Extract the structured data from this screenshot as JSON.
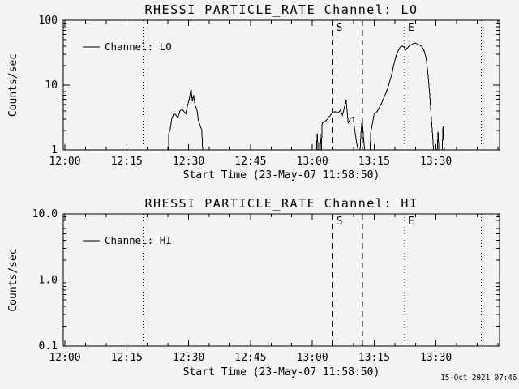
{
  "window": {
    "bg_color": "#f4f4f4",
    "fg_color": "#000000"
  },
  "footer": {
    "timestamp": "15-Oct-2021 07:46"
  },
  "chart_data": [
    {
      "id": "lo",
      "type": "line",
      "title": "RHESSI PARTICLE_RATE Channel: LO",
      "xlabel": "Start Time (23-May-07 11:58:50)",
      "ylabel": "Counts/sec",
      "legend": {
        "label": "Channel: LO",
        "position": "top-left"
      },
      "grid": false,
      "y_scale": "log",
      "ylim": [
        1,
        100
      ],
      "yticks": {
        "values": [
          1,
          10,
          100
        ],
        "labels": [
          "1",
          "10",
          "100"
        ]
      },
      "xlim_minutes_after_1200": [
        -0.4,
        105.4
      ],
      "xticks": {
        "values": [
          0,
          15,
          30,
          45,
          60,
          75,
          90
        ],
        "labels": [
          "12:00",
          "12:15",
          "12:30",
          "12:45",
          "13:00",
          "13:15",
          "13:30"
        ]
      },
      "x_minor_step_minutes": 5,
      "event_lines": [
        {
          "name": "eclipse-line-1",
          "style": "dotted",
          "t": 19.0,
          "label": ""
        },
        {
          "name": "flare-start-line",
          "style": "dashed",
          "t": 65.0,
          "label": "S"
        },
        {
          "name": "flare-mid-line",
          "style": "dashed",
          "t": 72.2,
          "label": ""
        },
        {
          "name": "flare-end-line",
          "style": "dotted",
          "t": 82.4,
          "label": "E"
        },
        {
          "name": "eclipse-line-2",
          "style": "dotted",
          "t": 101.0,
          "label": ""
        }
      ],
      "series": [
        {
          "name": "Channel: LO",
          "points": [
            [
              0,
              1
            ],
            [
              25.1,
              1
            ],
            [
              25.2,
              1.8
            ],
            [
              25.5,
              2.0
            ],
            [
              25.9,
              3.0
            ],
            [
              26.4,
              3.6
            ],
            [
              26.9,
              3.5
            ],
            [
              27.4,
              3.1
            ],
            [
              27.9,
              4.0
            ],
            [
              28.4,
              4.2
            ],
            [
              28.9,
              3.9
            ],
            [
              29.3,
              3.6
            ],
            [
              29.8,
              5.0
            ],
            [
              30.2,
              6.2
            ],
            [
              30.6,
              8.8
            ],
            [
              30.9,
              5.6
            ],
            [
              31.2,
              7.0
            ],
            [
              31.6,
              4.8
            ],
            [
              32.0,
              4.2
            ],
            [
              32.4,
              2.8
            ],
            [
              32.8,
              2.4
            ],
            [
              33.2,
              2.0
            ],
            [
              33.4,
              1
            ],
            [
              61.0,
              1
            ],
            [
              61.2,
              1.8
            ],
            [
              61.4,
              1
            ],
            [
              61.7,
              1
            ],
            [
              61.9,
              1.8
            ],
            [
              62.2,
              1
            ],
            [
              62.4,
              2.6
            ],
            [
              62.9,
              2.7
            ],
            [
              63.5,
              2.9
            ],
            [
              64.2,
              3.3
            ],
            [
              64.9,
              3.8
            ],
            [
              65.6,
              3.9
            ],
            [
              66.2,
              3.7
            ],
            [
              66.8,
              4.1
            ],
            [
              67.3,
              3.4
            ],
            [
              67.7,
              4.3
            ],
            [
              68.2,
              5.9
            ],
            [
              68.7,
              2.6
            ],
            [
              69.3,
              3.1
            ],
            [
              69.9,
              3.2
            ],
            [
              70.3,
              2.0
            ],
            [
              70.7,
              1.35
            ],
            [
              71.1,
              1
            ],
            [
              71.6,
              1
            ],
            [
              71.8,
              1.8
            ],
            [
              72.1,
              3.0
            ],
            [
              72.4,
              1.6
            ],
            [
              72.7,
              1
            ],
            [
              74.0,
              1
            ],
            [
              74.2,
              1.9
            ],
            [
              74.6,
              2.6
            ],
            [
              75.0,
              3.6
            ],
            [
              75.7,
              3.9
            ],
            [
              76.3,
              4.6
            ],
            [
              76.8,
              5.3
            ],
            [
              77.3,
              6.3
            ],
            [
              77.8,
              7.4
            ],
            [
              78.3,
              9.0
            ],
            [
              78.8,
              11.5
            ],
            [
              79.3,
              15
            ],
            [
              79.8,
              21
            ],
            [
              80.3,
              28
            ],
            [
              80.8,
              34
            ],
            [
              81.3,
              38
            ],
            [
              81.8,
              40
            ],
            [
              82.3,
              38.5
            ],
            [
              82.6,
              34.5
            ],
            [
              83.0,
              37
            ],
            [
              83.5,
              40
            ],
            [
              84.0,
              42
            ],
            [
              84.5,
              43.5
            ],
            [
              85.0,
              44.5
            ],
            [
              85.6,
              42.5
            ],
            [
              86.1,
              41
            ],
            [
              86.6,
              39
            ],
            [
              87.1,
              34
            ],
            [
              87.6,
              26
            ],
            [
              88.0,
              16
            ],
            [
              88.4,
              8
            ],
            [
              88.8,
              3.5
            ],
            [
              89.2,
              1.6
            ],
            [
              89.4,
              1
            ],
            [
              90.3,
              1
            ],
            [
              90.5,
              1.9
            ],
            [
              90.7,
              1
            ],
            [
              91.5,
              1
            ],
            [
              91.7,
              2.3
            ],
            [
              92.0,
              1
            ],
            [
              105.3,
              1
            ]
          ]
        }
      ]
    },
    {
      "id": "hi",
      "type": "line",
      "title": "RHESSI PARTICLE_RATE Channel: HI",
      "xlabel": "Start Time (23-May-07 11:58:50)",
      "ylabel": "Counts/sec",
      "legend": {
        "label": "Channel: HI",
        "position": "top-left"
      },
      "grid": false,
      "y_scale": "log",
      "ylim": [
        0.1,
        10
      ],
      "yticks": {
        "values": [
          0.1,
          1,
          10
        ],
        "labels": [
          "0.1",
          "1.0",
          "10.0"
        ]
      },
      "xlim_minutes_after_1200": [
        -0.4,
        105.4
      ],
      "xticks": {
        "values": [
          0,
          15,
          30,
          45,
          60,
          75,
          90
        ],
        "labels": [
          "12:00",
          "12:15",
          "12:30",
          "12:45",
          "13:00",
          "13:15",
          "13:30"
        ]
      },
      "x_minor_step_minutes": 5,
      "event_lines": [
        {
          "name": "eclipse-line-1",
          "style": "dotted",
          "t": 19.0,
          "label": ""
        },
        {
          "name": "flare-start-line",
          "style": "dashed",
          "t": 65.0,
          "label": "S"
        },
        {
          "name": "flare-mid-line",
          "style": "dashed",
          "t": 72.2,
          "label": ""
        },
        {
          "name": "flare-end-line",
          "style": "dotted",
          "t": 82.4,
          "label": "E"
        },
        {
          "name": "eclipse-line-2",
          "style": "dotted",
          "t": 101.0,
          "label": ""
        }
      ],
      "series": [
        {
          "name": "Channel: HI",
          "points": []
        }
      ]
    }
  ]
}
